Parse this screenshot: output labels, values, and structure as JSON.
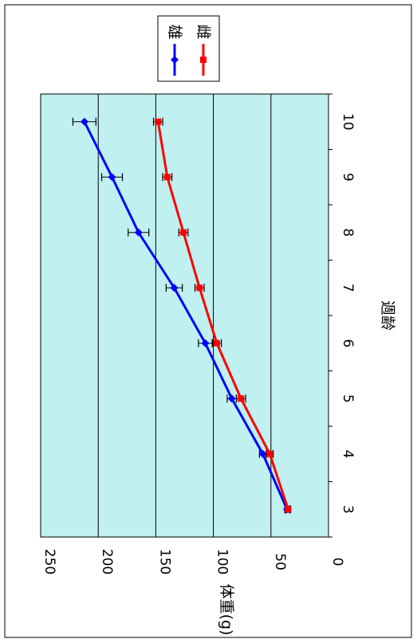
{
  "chart_data": {
    "type": "line",
    "orientation": "rotated-90-clockwise",
    "x": [
      3,
      4,
      5,
      6,
      7,
      8,
      9,
      10
    ],
    "xticks": [
      "3",
      "4",
      "5",
      "6",
      "7",
      "8",
      "9",
      "10"
    ],
    "xlabel": "週齢",
    "ylabel": "体重(g)",
    "ylim": [
      0,
      250
    ],
    "yticks": [
      "0",
      "50",
      "100",
      "150",
      "200",
      "250"
    ],
    "ytick_values": [
      0,
      50,
      100,
      150,
      200,
      250
    ],
    "grid": true,
    "legend_position": "top-right",
    "plot_background": "#c0f0f0",
    "series": [
      {
        "name": "雄",
        "color": "#0000ff",
        "marker": "diamond",
        "values": [
          36,
          57,
          84,
          107,
          134,
          165,
          188,
          212
        ],
        "error": [
          2,
          3,
          4,
          6,
          7,
          9,
          9,
          10
        ]
      },
      {
        "name": "雌",
        "color": "#ff0000",
        "marker": "square",
        "values": [
          35,
          51,
          76,
          97,
          112,
          126,
          140,
          148
        ],
        "error": [
          2,
          3,
          4,
          4,
          4,
          4,
          4,
          4
        ]
      }
    ]
  }
}
